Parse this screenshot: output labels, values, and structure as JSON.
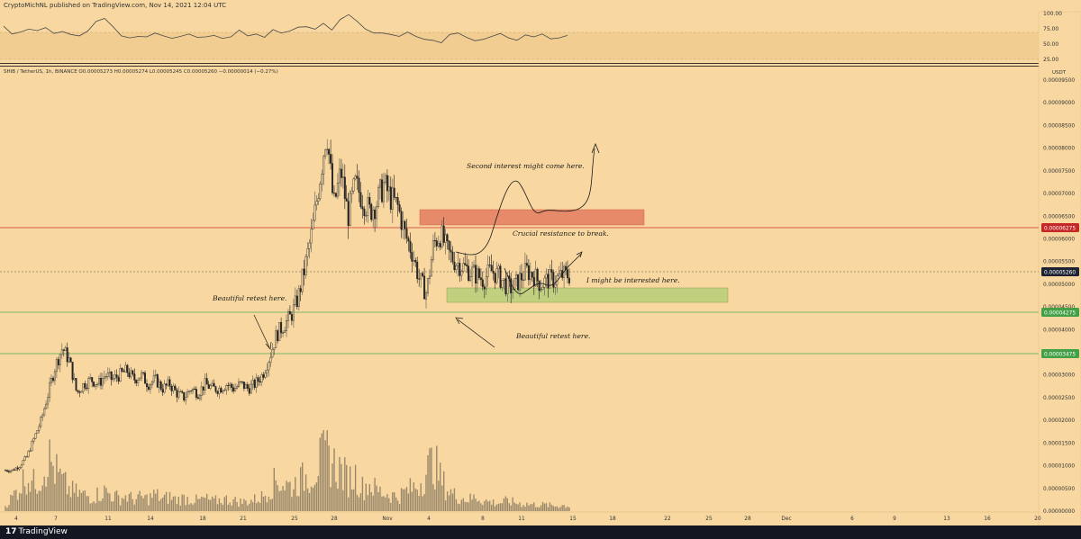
{
  "header": {
    "publisher": "CryptoMichNL published on TradingView.com, Nov 14, 2021 12:04 UTC"
  },
  "symbol_line": "SHIB / TetherUS, 1h, BINANCE   O0.00005273  H0.00005274  L0.00005245  C0.00005260  −0.00000014 (−0.27%)",
  "footer": {
    "logo": "17",
    "brand": "TradingView"
  },
  "colors": {
    "background": "#f8d8a0",
    "resistance_line": "#d32f2f",
    "support_line": "#4caf50",
    "resistance_zone": "#e07058",
    "support_zone": "#b8cf7a",
    "candles": "#262626"
  },
  "chart_data": [
    {
      "type": "line",
      "panel": "rsi",
      "y_ticks": [
        "100.00",
        "75.00",
        "50.00",
        "25.00"
      ],
      "ylim": [
        0,
        100
      ],
      "band": [
        30,
        70
      ],
      "values": [
        72,
        56,
        60,
        66,
        63,
        69,
        57,
        61,
        55,
        52,
        62,
        82,
        88,
        71,
        52,
        48,
        51,
        50,
        58,
        52,
        47,
        51,
        56,
        49,
        50,
        53,
        47,
        50,
        64,
        52,
        56,
        49,
        65,
        58,
        62,
        70,
        71,
        66,
        78,
        64,
        86,
        96,
        82,
        66,
        58,
        58,
        55,
        51,
        60,
        51,
        45,
        43,
        38,
        55,
        58,
        49,
        42,
        45,
        51,
        57,
        48,
        43,
        54,
        50,
        56,
        46,
        48,
        53
      ]
    },
    {
      "type": "candlestick",
      "panel": "price",
      "unit_label": "USDT",
      "ylim": [
        1e-07,
        9.6e-06
      ],
      "y_ticks": [
        "0.00009500",
        "0.00009000",
        "0.00008500",
        "0.00008000",
        "0.00007500",
        "0.00007000",
        "0.00006500",
        "0.00006000",
        "0.00005500",
        "0.00005000",
        "0.00004500",
        "0.00004000",
        "0.00003500",
        "0.00003000",
        "0.00002500",
        "0.00002000",
        "0.00001500",
        "0.00001000",
        "0.00000500",
        "0.00000000"
      ],
      "x_ticks": [
        "4",
        "7",
        "11",
        "14",
        "18",
        "21",
        "25",
        "28",
        "Nov",
        "4",
        "8",
        "11",
        "15",
        "18",
        "22",
        "25",
        "28",
        "Dec",
        "6",
        "9",
        "13",
        "16",
        "20"
      ],
      "price_labels": [
        {
          "label": "0.00006275",
          "kind": "resistance",
          "value": 6.275e-05
        },
        {
          "label": "0.00005260",
          "kind": "last",
          "value": 5.26e-05
        },
        {
          "label": "0.00004275",
          "kind": "support",
          "value": 4.275e-05
        },
        {
          "label": "0.00003475",
          "kind": "support",
          "value": 3.475e-05
        }
      ],
      "close_path": [
        1e-05,
        1e-05,
        1.1e-05,
        1.3e-05,
        1.7e-05,
        2.1e-05,
        2.7e-05,
        3.3e-05,
        3.7e-05,
        3.4e-05,
        2.7e-05,
        2.9e-05,
        3e-05,
        2.9e-05,
        3.1e-05,
        3e-05,
        3.1e-05,
        3.2e-05,
        3e-05,
        3.1e-05,
        2.9e-05,
        3e-05,
        2.8e-05,
        2.9e-05,
        2.7e-05,
        2.6e-05,
        2.8e-05,
        2.7e-05,
        2.9e-05,
        2.8e-05,
        2.8e-05,
        2.9e-05,
        2.8e-05,
        2.9e-05,
        2.8e-05,
        2.9e-05,
        3.1e-05,
        3.5e-05,
        4e-05,
        4.2e-05,
        4.4e-05,
        4.8e-05,
        5.5e-05,
        6.3e-05,
        7.4e-05,
        8.5e-05,
        6.8e-05,
        7.6e-05,
        6.6e-05,
        7.3e-05,
        7e-05,
        6.7e-05,
        6.9e-05,
        7.3e-05,
        7e-05,
        6.8e-05,
        6.2e-05,
        5.8e-05,
        5.2e-05,
        4.9e-05,
        6e-05,
        6.2e-05,
        5.8e-05,
        5.6e-05,
        5.5e-05,
        5.4e-05,
        5.3e-05,
        5.2e-05,
        5.4e-05,
        5.3e-05,
        5.1e-05,
        5e-05,
        5.2e-05,
        5.4e-05,
        5.3e-05,
        5.1e-05,
        5.2e-05,
        5.2e-05,
        5.3e-05,
        5.3e-05
      ],
      "volume_path": [
        0.08,
        0.22,
        0.38,
        0.56,
        0.42,
        0.55,
        0.83,
        0.62,
        0.45,
        0.32,
        0.28,
        0.25,
        0.22,
        0.26,
        0.31,
        0.24,
        0.2,
        0.23,
        0.18,
        0.21,
        0.19,
        0.26,
        0.18,
        0.22,
        0.17,
        0.2,
        0.18,
        0.16,
        0.19,
        0.15,
        0.17,
        0.18,
        0.16,
        0.14,
        0.15,
        0.18,
        0.22,
        0.35,
        0.48,
        0.42,
        0.38,
        0.45,
        0.52,
        0.58,
        0.75,
        0.88,
        0.72,
        0.62,
        0.48,
        0.55,
        0.36,
        0.42,
        0.32,
        0.28,
        0.25,
        0.22,
        0.3,
        0.35,
        0.42,
        0.62,
        0.78,
        0.48,
        0.32,
        0.24,
        0.2,
        0.18,
        0.22,
        0.16,
        0.14,
        0.12,
        0.15,
        0.14,
        0.12,
        0.11,
        0.1,
        0.1,
        0.09,
        0.08,
        0.09,
        0.08
      ],
      "zones": [
        {
          "name": "resistance",
          "from": 6.3e-06,
          "to": 6.6e-06
        },
        {
          "name": "support",
          "from": 4.6e-06,
          "to": 4.9e-06
        }
      ],
      "annotations": [
        {
          "key": "a1",
          "text": "Second interest might come here."
        },
        {
          "key": "a2",
          "text": "Crucial resistance to break."
        },
        {
          "key": "a3",
          "text": "I might be interested here."
        },
        {
          "key": "a4",
          "text": "Beautiful retest here."
        },
        {
          "key": "a5",
          "text": "Beautiful retest here."
        }
      ]
    }
  ]
}
